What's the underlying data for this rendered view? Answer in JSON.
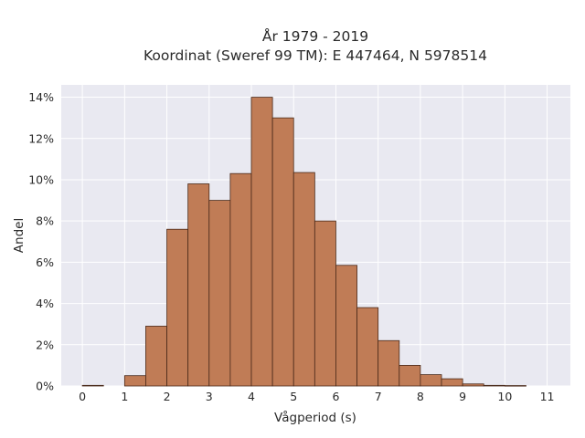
{
  "chart_data": {
    "type": "bar",
    "title_line1": "År 1979 - 2019",
    "title_line2": "Koordinat (Sweref 99 TM): E 447464, N 5978514",
    "xlabel": "Vågperiod (s)",
    "ylabel": "Andel",
    "bin_width": 0.5,
    "bin_starts": [
      0,
      0.5,
      1,
      1.5,
      2,
      2.5,
      3,
      3.5,
      4,
      4.5,
      5,
      5.5,
      6,
      6.5,
      7,
      7.5,
      8,
      8.5,
      9,
      9.5,
      10,
      10.5
    ],
    "values": [
      0.03,
      0,
      0.5,
      2.9,
      7.6,
      9.8,
      9.0,
      10.3,
      14.0,
      13.0,
      10.35,
      8.0,
      5.85,
      3.8,
      2.2,
      1.0,
      0.55,
      0.35,
      0.1,
      0.03,
      0.02,
      0
    ],
    "xlim": [
      -0.5,
      11.55
    ],
    "ylim": [
      0,
      14.6
    ],
    "x_ticks": [
      0,
      1,
      2,
      3,
      4,
      5,
      6,
      7,
      8,
      9,
      10,
      11
    ],
    "x_tick_labels": [
      "0",
      "1",
      "2",
      "3",
      "4",
      "5",
      "6",
      "7",
      "8",
      "9",
      "10",
      "11"
    ],
    "y_ticks": [
      0,
      2,
      4,
      6,
      8,
      10,
      12,
      14
    ],
    "y_tick_labels": [
      "0%",
      "2%",
      "4%",
      "6%",
      "8%",
      "10%",
      "12%",
      "14%"
    ],
    "grid": true,
    "colors": {
      "bar_fill": "#c07c56",
      "bar_edge": "#4a2a1a",
      "plot_bg": "#e9e9f1",
      "grid": "#ffffff"
    }
  }
}
